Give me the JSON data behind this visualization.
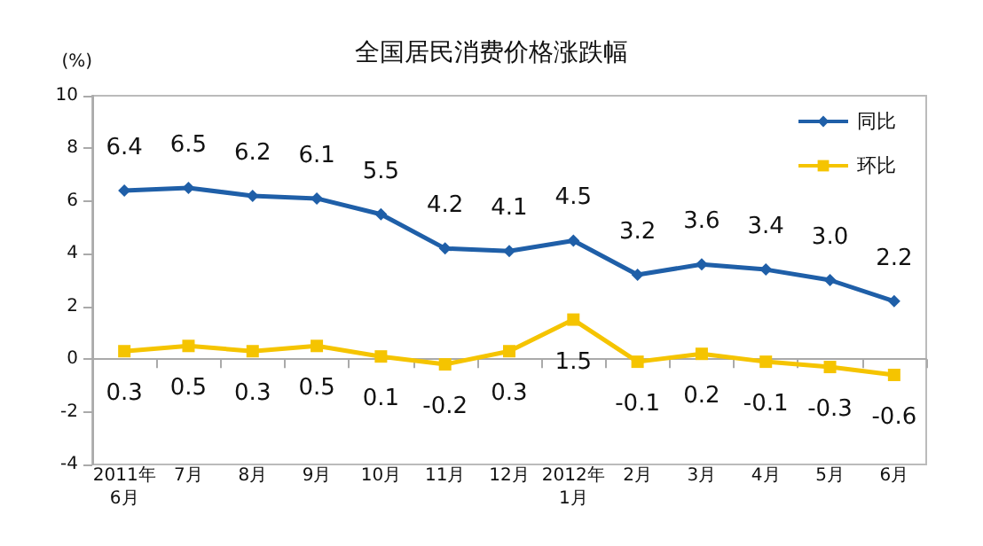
{
  "chart_data": {
    "type": "line",
    "title": "全国居民消费价格涨跌幅",
    "ylabel": "(%)",
    "categories": [
      "2011年\n6月",
      "7月",
      "8月",
      "9月",
      "10月",
      "11月",
      "12月",
      "2012年\n1月",
      "2月",
      "3月",
      "4月",
      "5月",
      "6月"
    ],
    "series": [
      {
        "name": "同比",
        "color": "#1f5fa8",
        "marker": "diamond",
        "values": [
          6.4,
          6.5,
          6.2,
          6.1,
          5.5,
          4.2,
          4.1,
          4.5,
          3.2,
          3.6,
          3.4,
          3.0,
          2.2
        ],
        "value_labels": [
          "6.4",
          "6.5",
          "6.2",
          "6.1",
          "5.5",
          "4.2",
          "4.1",
          "4.5",
          "3.2",
          "3.6",
          "3.4",
          "3.0",
          "2.2"
        ]
      },
      {
        "name": "环比",
        "color": "#f5c400",
        "marker": "square",
        "values": [
          0.3,
          0.5,
          0.3,
          0.5,
          0.1,
          -0.2,
          0.3,
          1.5,
          -0.1,
          0.2,
          -0.1,
          -0.3,
          -0.6
        ],
        "value_labels": [
          "0.3",
          "0.5",
          "0.3",
          "0.5",
          "0.1",
          "-0.2",
          "0.3",
          "1.5",
          "-0.1",
          "0.2",
          "-0.1",
          "-0.3",
          "-0.6"
        ]
      }
    ],
    "ylim": [
      -4,
      10
    ],
    "yticks": [
      -4,
      -2,
      0,
      2,
      4,
      6,
      8,
      10
    ],
    "legend": "top right"
  }
}
